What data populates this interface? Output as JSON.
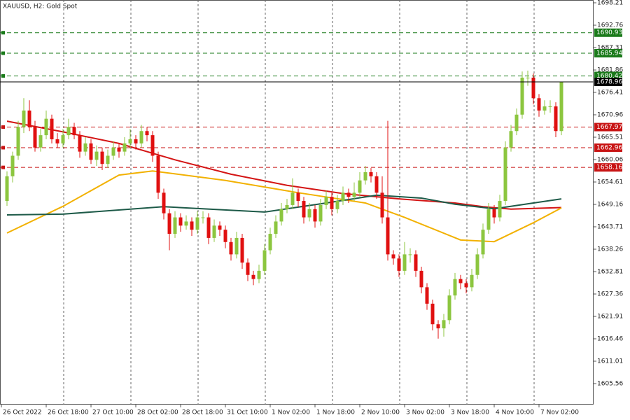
{
  "chart_data": {
    "type": "candlestick",
    "title": "XAUUSD, H2:  Gold Spot",
    "ylim": [
      1600.45,
      1698.89
    ],
    "yticks": [
      1698.21,
      1692.76,
      1687.31,
      1681.86,
      1676.41,
      1670.96,
      1665.51,
      1660.06,
      1654.61,
      1649.16,
      1643.71,
      1638.26,
      1632.81,
      1627.36,
      1621.91,
      1616.46,
      1611.01,
      1605.56
    ],
    "up_color": "#8cc63f",
    "down_color": "#e01010",
    "categories": [
      "26 Oct 2022",
      null,
      null,
      null,
      null,
      null,
      null,
      null,
      "26 Oct 18:00",
      null,
      null,
      null,
      null,
      null,
      null,
      null,
      "27 Oct 10:00",
      null,
      null,
      null,
      null,
      null,
      null,
      null,
      "28 Oct 02:00",
      null,
      null,
      null,
      null,
      null,
      null,
      null,
      "28 Oct 18:00",
      null,
      null,
      null,
      null,
      null,
      null,
      null,
      "31 Oct 10:00",
      null,
      null,
      null,
      null,
      null,
      null,
      null,
      "1 Nov 02:00",
      null,
      null,
      null,
      null,
      null,
      null,
      null,
      "1 Nov 18:00",
      null,
      null,
      null,
      null,
      null,
      null,
      null,
      "2 Nov 10:00",
      null,
      null,
      null,
      null,
      null,
      null,
      null,
      "3 Nov 02:00",
      null,
      null,
      null,
      null,
      null,
      null,
      null,
      "3 Nov 18:00",
      null,
      null,
      null,
      null,
      null,
      null,
      null,
      "4 Nov 10:00",
      null,
      null,
      null,
      null,
      null,
      null,
      null,
      "7 Nov 02:00",
      null,
      null,
      null
    ],
    "candles": [
      [
        1650,
        1657.2,
        1648.8,
        1656
      ],
      [
        1656,
        1662,
        1654.5,
        1661
      ],
      [
        1661,
        1669.5,
        1660,
        1668
      ],
      [
        1668,
        1675,
        1666.5,
        1672
      ],
      [
        1672,
        1674.5,
        1667,
        1668
      ],
      [
        1668,
        1669.5,
        1662,
        1663
      ],
      [
        1663,
        1667.5,
        1662,
        1666
      ],
      [
        1666,
        1672,
        1665,
        1670
      ],
      [
        1670,
        1671,
        1664,
        1665
      ],
      [
        1665,
        1666.5,
        1663,
        1664
      ],
      [
        1664,
        1667.5,
        1663,
        1666
      ],
      [
        1666,
        1670,
        1665,
        1668
      ],
      [
        1668,
        1669,
        1665,
        1666
      ],
      [
        1666,
        1667,
        1660.5,
        1662
      ],
      [
        1662,
        1665.5,
        1661,
        1664
      ],
      [
        1664,
        1665,
        1659,
        1660
      ],
      [
        1660,
        1663.5,
        1658.5,
        1662
      ],
      [
        1662,
        1663,
        1657.5,
        1659
      ],
      [
        1659,
        1662.5,
        1658,
        1661
      ],
      [
        1661,
        1664.5,
        1660,
        1663
      ],
      [
        1663,
        1664,
        1660.5,
        1662
      ],
      [
        1662,
        1665.5,
        1661,
        1664
      ],
      [
        1664,
        1667.5,
        1663,
        1665
      ],
      [
        1665,
        1666,
        1662.5,
        1664
      ],
      [
        1664,
        1668.5,
        1663,
        1667
      ],
      [
        1667,
        1668,
        1664.5,
        1666
      ],
      [
        1666,
        1667,
        1659.5,
        1661
      ],
      [
        1661,
        1662,
        1650.5,
        1652
      ],
      [
        1652,
        1653,
        1645.5,
        1647
      ],
      [
        1647,
        1648,
        1638,
        1642
      ],
      [
        1642,
        1647.5,
        1641,
        1646
      ],
      [
        1646,
        1647,
        1642.5,
        1644
      ],
      [
        1644,
        1646.5,
        1643,
        1645
      ],
      [
        1645,
        1646,
        1641.5,
        1643
      ],
      [
        1643,
        1647.5,
        1642,
        1646
      ],
      [
        1646,
        1647.5,
        1644.5,
        1646
      ],
      [
        1646,
        1647,
        1639.5,
        1641
      ],
      [
        1641,
        1645.5,
        1640,
        1644
      ],
      [
        1644,
        1645,
        1641.5,
        1643
      ],
      [
        1643,
        1644,
        1638.5,
        1640
      ],
      [
        1640,
        1641,
        1635.5,
        1637
      ],
      [
        1637,
        1642.5,
        1636,
        1641
      ],
      [
        1641,
        1642,
        1633.5,
        1635
      ],
      [
        1635,
        1636,
        1630.5,
        1632
      ],
      [
        1632,
        1633,
        1629.5,
        1631
      ],
      [
        1631,
        1634.5,
        1630,
        1633
      ],
      [
        1633,
        1639.5,
        1632,
        1638
      ],
      [
        1638,
        1643.5,
        1637,
        1642
      ],
      [
        1642,
        1646.5,
        1641,
        1645
      ],
      [
        1645,
        1649.5,
        1644,
        1648
      ],
      [
        1648,
        1650.5,
        1647,
        1649
      ],
      [
        1649,
        1655.5,
        1648,
        1652
      ],
      [
        1652,
        1653,
        1648.5,
        1650
      ],
      [
        1650,
        1651,
        1644.5,
        1646
      ],
      [
        1646,
        1649.5,
        1645,
        1648
      ],
      [
        1648,
        1649,
        1643.5,
        1645
      ],
      [
        1645,
        1650.5,
        1644,
        1649
      ],
      [
        1649,
        1652.5,
        1648,
        1651
      ],
      [
        1651,
        1652,
        1646.5,
        1648
      ],
      [
        1648,
        1651.5,
        1647,
        1650
      ],
      [
        1650,
        1653.5,
        1649,
        1652
      ],
      [
        1652,
        1653,
        1649.5,
        1651
      ],
      [
        1651,
        1654.5,
        1650,
        1652
      ],
      [
        1652,
        1657,
        1651,
        1655
      ],
      [
        1655,
        1658.5,
        1654,
        1657
      ],
      [
        1657,
        1658,
        1654.5,
        1656
      ],
      [
        1656,
        1657,
        1650.5,
        1652
      ],
      [
        1652,
        1656,
        1644.5,
        1646
      ],
      [
        1646,
        1669.5,
        1635.5,
        1637
      ],
      [
        1637,
        1638,
        1634.5,
        1636
      ],
      [
        1636,
        1637,
        1631.5,
        1633
      ],
      [
        1633,
        1640,
        1632,
        1637
      ],
      [
        1637,
        1638.5,
        1635,
        1637
      ],
      [
        1637,
        1638,
        1631.5,
        1633
      ],
      [
        1633,
        1634,
        1627.5,
        1629
      ],
      [
        1629,
        1630,
        1623.5,
        1625
      ],
      [
        1625,
        1626,
        1618.5,
        1620
      ],
      [
        1620,
        1621,
        1616.5,
        1619
      ],
      [
        1619,
        1622.5,
        1617,
        1621
      ],
      [
        1621,
        1628.5,
        1620,
        1627
      ],
      [
        1627,
        1632.5,
        1626,
        1631
      ],
      [
        1631,
        1632,
        1628.5,
        1630
      ],
      [
        1630,
        1631,
        1627.5,
        1629
      ],
      [
        1629,
        1633.5,
        1628,
        1632
      ],
      [
        1632,
        1638.5,
        1631,
        1637
      ],
      [
        1637,
        1644.5,
        1636,
        1643
      ],
      [
        1643,
        1649.5,
        1642,
        1648
      ],
      [
        1648,
        1649,
        1644.5,
        1646
      ],
      [
        1646,
        1651.5,
        1645,
        1650
      ],
      [
        1650,
        1664.5,
        1649,
        1663
      ],
      [
        1663,
        1668.5,
        1662,
        1667
      ],
      [
        1667,
        1672.5,
        1666,
        1671
      ],
      [
        1671,
        1681.5,
        1670,
        1680
      ],
      [
        1680,
        1681.7,
        1678,
        1680
      ],
      [
        1680,
        1681,
        1673.5,
        1675
      ],
      [
        1675,
        1676,
        1670.5,
        1672
      ],
      [
        1672,
        1674.5,
        1671,
        1673
      ],
      [
        1673,
        1674.5,
        1671.5,
        1673
      ],
      [
        1673,
        1674,
        1665.5,
        1667
      ],
      [
        1667,
        1678.96,
        1666,
        1678.96
      ]
    ],
    "series": [
      {
        "color": "#d41414",
        "x": [
          0,
          10,
          20,
          30,
          40,
          50,
          60,
          70,
          80,
          85,
          90,
          99
        ],
        "values": [
          1669.4,
          1666.8,
          1664,
          1660,
          1656.5,
          1653.8,
          1651.8,
          1650.5,
          1649.5,
          1648.6,
          1648,
          1648.4
        ]
      },
      {
        "color": "#f2b100",
        "x": [
          0,
          10,
          20,
          26,
          39,
          52,
          64,
          71,
          81,
          87,
          94,
          99
        ],
        "values": [
          1642.2,
          1648.7,
          1656.3,
          1657.3,
          1655,
          1652,
          1649.5,
          1646,
          1640.5,
          1640.1,
          1644.7,
          1648.3
        ]
      },
      {
        "color": "#1d5a48",
        "x": [
          0,
          10,
          28,
          46,
          57,
          66,
          74,
          80,
          87,
          94,
          99
        ],
        "values": [
          1646.6,
          1646.8,
          1648.6,
          1647.3,
          1649.5,
          1651.4,
          1650.7,
          1649.2,
          1648.1,
          1649.5,
          1650.5
        ]
      }
    ],
    "levels": [
      {
        "value": 1690.93,
        "color": "#1a7a1a"
      },
      {
        "value": 1685.94,
        "color": "#1a7a1a"
      },
      {
        "value": 1680.42,
        "color": "#1a7a1a"
      },
      {
        "value": 1667.97,
        "color": "#c81414"
      },
      {
        "value": 1662.96,
        "color": "#c81414"
      },
      {
        "value": 1658.16,
        "color": "#c81414"
      }
    ],
    "current_price": 1678.96
  }
}
